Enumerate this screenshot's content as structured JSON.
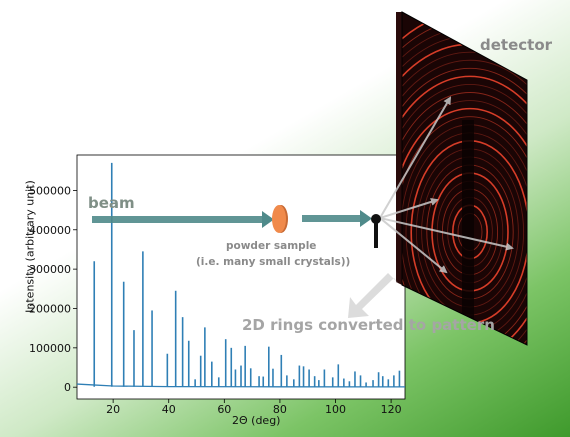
{
  "labels": {
    "detector": "detector",
    "beam": "beam",
    "sample_line1": "powder sample",
    "sample_line2": "(i.e. many small crystals))",
    "rings": "2D rings converted to pattern"
  },
  "colors": {
    "pattern": "#2f7fb5",
    "beam_arrow": "#4f8a8a",
    "sample": "#f08a4b",
    "detector_bg": "#1a0505",
    "ring": "#e0402a",
    "diffracted_arrow": "#c9c9c9"
  },
  "chart_data": {
    "type": "line",
    "xlabel": "2Θ (deg)",
    "ylabel": "Intensity (arbitrary unit)",
    "xlim": [
      7,
      125
    ],
    "ylim": [
      -30000,
      590000
    ],
    "xticks": [
      20,
      40,
      60,
      80,
      100,
      120
    ],
    "yticks": [
      0,
      100000,
      200000,
      300000,
      400000,
      500000
    ],
    "background": [
      [
        7,
        8000
      ],
      [
        12,
        6000
      ],
      [
        20,
        3000
      ],
      [
        40,
        1500
      ],
      [
        80,
        1000
      ],
      [
        125,
        800
      ]
    ],
    "peaks": [
      [
        13.2,
        320000
      ],
      [
        19.5,
        570000
      ],
      [
        23.8,
        268000
      ],
      [
        27.5,
        145000
      ],
      [
        30.7,
        345000
      ],
      [
        34.0,
        195000
      ],
      [
        39.5,
        85000
      ],
      [
        42.5,
        245000
      ],
      [
        45.0,
        178000
      ],
      [
        47.2,
        118000
      ],
      [
        49.5,
        20000
      ],
      [
        51.5,
        80000
      ],
      [
        53.0,
        152000
      ],
      [
        55.5,
        65000
      ],
      [
        58.0,
        25000
      ],
      [
        60.5,
        122000
      ],
      [
        62.5,
        100000
      ],
      [
        64.0,
        45000
      ],
      [
        66.0,
        55000
      ],
      [
        67.5,
        105000
      ],
      [
        69.5,
        48000
      ],
      [
        72.5,
        28000
      ],
      [
        74.0,
        27000
      ],
      [
        76.0,
        103000
      ],
      [
        77.5,
        47000
      ],
      [
        80.5,
        82000
      ],
      [
        82.5,
        30000
      ],
      [
        85.0,
        20000
      ],
      [
        87.0,
        55000
      ],
      [
        88.5,
        53000
      ],
      [
        90.5,
        45000
      ],
      [
        92.5,
        28000
      ],
      [
        94.0,
        18000
      ],
      [
        96.0,
        45000
      ],
      [
        99.0,
        25000
      ],
      [
        101.0,
        58000
      ],
      [
        103.0,
        22000
      ],
      [
        105.0,
        15000
      ],
      [
        107.0,
        40000
      ],
      [
        109.0,
        30000
      ],
      [
        111.0,
        12000
      ],
      [
        113.5,
        18000
      ],
      [
        115.5,
        38000
      ],
      [
        117.0,
        28000
      ],
      [
        119.0,
        20000
      ],
      [
        121.0,
        30000
      ],
      [
        123.0,
        42000
      ]
    ]
  }
}
